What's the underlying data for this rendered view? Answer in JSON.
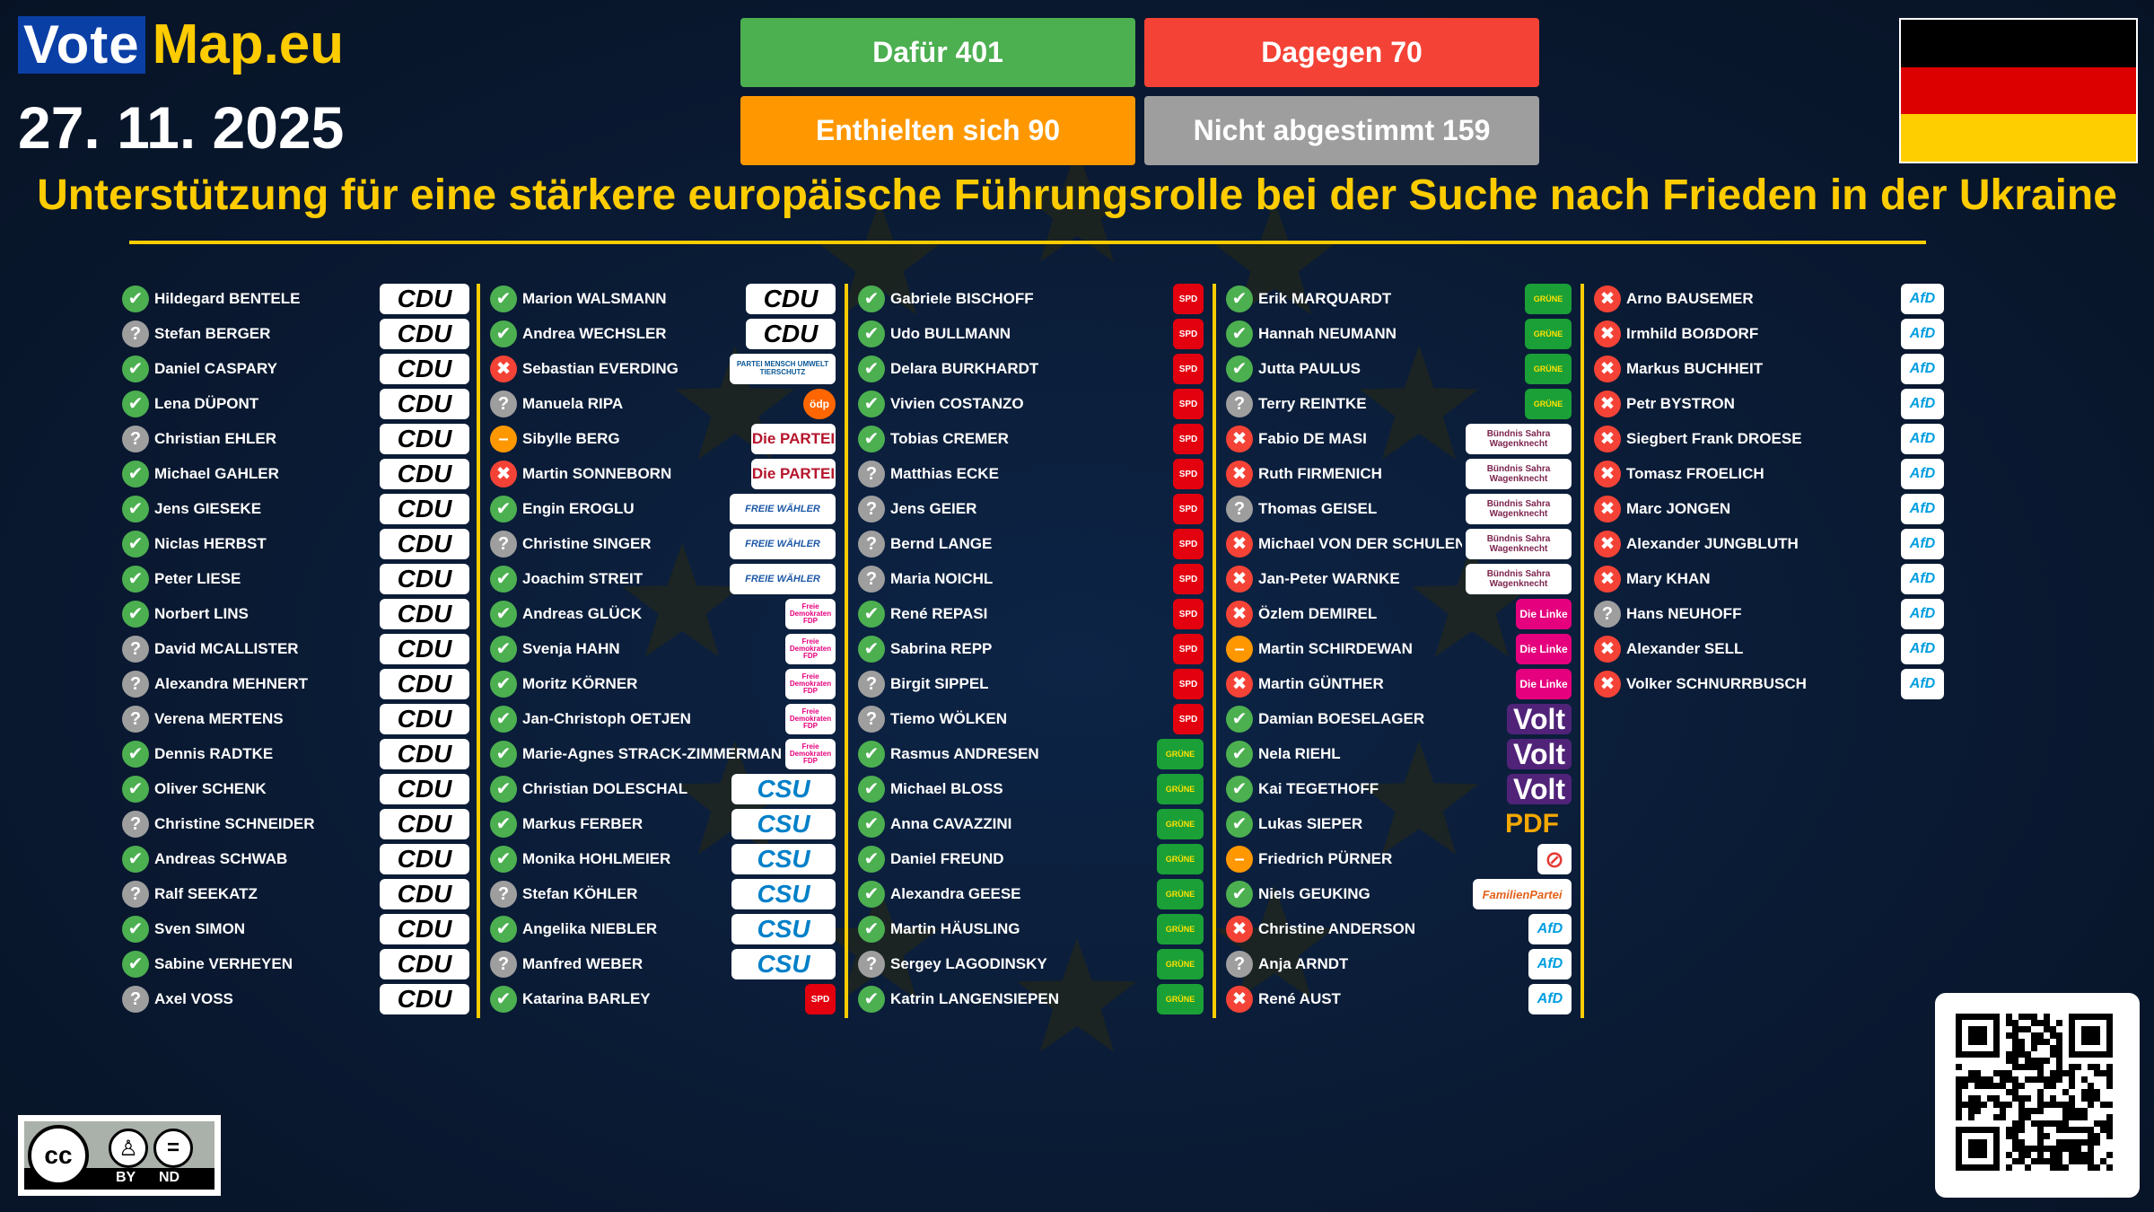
{
  "brand": {
    "vote": "Vote",
    "map": "Map.eu"
  },
  "date": "27. 11. 2025",
  "counts": {
    "for": "Dafür 401",
    "against": "Dagegen 70",
    "abstain": "Enthielten sich 90",
    "novote": "Nicht abgestimmt 159"
  },
  "title": "Unterstützung für eine stärkere europäische Führungsrolle bei der Suche nach Frieden in der Ukraine",
  "license": {
    "by": "BY",
    "nd": "ND"
  },
  "colors": {
    "for": "#4caf50",
    "against": "#f44336",
    "abstain": "#ff9800",
    "novote": "#9e9e9e",
    "accent": "#ffcc00",
    "background": "#0a1a33"
  },
  "flag": [
    "#000000",
    "#dd0000",
    "#ffce00"
  ],
  "columns": [
    [
      {
        "name": "Hildegard BENTELE",
        "vote": "for",
        "party": "cdu"
      },
      {
        "name": "Stefan BERGER",
        "vote": "novote",
        "party": "cdu"
      },
      {
        "name": "Daniel CASPARY",
        "vote": "for",
        "party": "cdu"
      },
      {
        "name": "Lena DÜPONT",
        "vote": "for",
        "party": "cdu"
      },
      {
        "name": "Christian EHLER",
        "vote": "novote",
        "party": "cdu"
      },
      {
        "name": "Michael GAHLER",
        "vote": "for",
        "party": "cdu"
      },
      {
        "name": "Jens GIESEKE",
        "vote": "for",
        "party": "cdu"
      },
      {
        "name": "Niclas HERBST",
        "vote": "for",
        "party": "cdu"
      },
      {
        "name": "Peter LIESE",
        "vote": "for",
        "party": "cdu"
      },
      {
        "name": "Norbert LINS",
        "vote": "for",
        "party": "cdu"
      },
      {
        "name": "David MCALLISTER",
        "vote": "novote",
        "party": "cdu"
      },
      {
        "name": "Alexandra MEHNERT",
        "vote": "novote",
        "party": "cdu"
      },
      {
        "name": "Verena MERTENS",
        "vote": "novote",
        "party": "cdu"
      },
      {
        "name": "Dennis RADTKE",
        "vote": "for",
        "party": "cdu"
      },
      {
        "name": "Oliver SCHENK",
        "vote": "for",
        "party": "cdu"
      },
      {
        "name": "Christine SCHNEIDER",
        "vote": "novote",
        "party": "cdu"
      },
      {
        "name": "Andreas SCHWAB",
        "vote": "for",
        "party": "cdu"
      },
      {
        "name": "Ralf SEEKATZ",
        "vote": "novote",
        "party": "cdu"
      },
      {
        "name": "Sven SIMON",
        "vote": "for",
        "party": "cdu"
      },
      {
        "name": "Sabine VERHEYEN",
        "vote": "for",
        "party": "cdu"
      },
      {
        "name": "Axel VOSS",
        "vote": "novote",
        "party": "cdu"
      }
    ],
    [
      {
        "name": "Marion WALSMANN",
        "vote": "for",
        "party": "cdu"
      },
      {
        "name": "Andrea WECHSLER",
        "vote": "for",
        "party": "cdu"
      },
      {
        "name": "Sebastian EVERDING",
        "vote": "against",
        "party": "tierschutz"
      },
      {
        "name": "Manuela RIPA",
        "vote": "novote",
        "party": "oedp"
      },
      {
        "name": "Sibylle BERG",
        "vote": "abstain",
        "party": "partei"
      },
      {
        "name": "Martin SONNEBORN",
        "vote": "against",
        "party": "partei"
      },
      {
        "name": "Engin EROGLU",
        "vote": "for",
        "party": "fw"
      },
      {
        "name": "Christine SINGER",
        "vote": "novote",
        "party": "fw"
      },
      {
        "name": "Joachim STREIT",
        "vote": "for",
        "party": "fw"
      },
      {
        "name": "Andreas GLÜCK",
        "vote": "for",
        "party": "fdp"
      },
      {
        "name": "Svenja HAHN",
        "vote": "for",
        "party": "fdp"
      },
      {
        "name": "Moritz KÖRNER",
        "vote": "for",
        "party": "fdp"
      },
      {
        "name": "Jan-Christoph OETJEN",
        "vote": "for",
        "party": "fdp"
      },
      {
        "name": "Marie-Agnes STRACK-ZIMMERMANN",
        "vote": "for",
        "party": "fdp"
      },
      {
        "name": "Christian DOLESCHAL",
        "vote": "for",
        "party": "csu"
      },
      {
        "name": "Markus FERBER",
        "vote": "for",
        "party": "csu"
      },
      {
        "name": "Monika HOHLMEIER",
        "vote": "for",
        "party": "csu"
      },
      {
        "name": "Stefan KÖHLER",
        "vote": "novote",
        "party": "csu"
      },
      {
        "name": "Angelika NIEBLER",
        "vote": "for",
        "party": "csu"
      },
      {
        "name": "Manfred WEBER",
        "vote": "novote",
        "party": "csu"
      },
      {
        "name": "Katarina BARLEY",
        "vote": "for",
        "party": "spd"
      }
    ],
    [
      {
        "name": "Gabriele BISCHOFF",
        "vote": "for",
        "party": "spd"
      },
      {
        "name": "Udo BULLMANN",
        "vote": "for",
        "party": "spd"
      },
      {
        "name": "Delara BURKHARDT",
        "vote": "for",
        "party": "spd"
      },
      {
        "name": "Vivien COSTANZO",
        "vote": "for",
        "party": "spd"
      },
      {
        "name": "Tobias CREMER",
        "vote": "for",
        "party": "spd"
      },
      {
        "name": "Matthias ECKE",
        "vote": "novote",
        "party": "spd"
      },
      {
        "name": "Jens GEIER",
        "vote": "novote",
        "party": "spd"
      },
      {
        "name": "Bernd LANGE",
        "vote": "novote",
        "party": "spd"
      },
      {
        "name": "Maria NOICHL",
        "vote": "novote",
        "party": "spd"
      },
      {
        "name": "René REPASI",
        "vote": "for",
        "party": "spd"
      },
      {
        "name": "Sabrina REPP",
        "vote": "for",
        "party": "spd"
      },
      {
        "name": "Birgit SIPPEL",
        "vote": "novote",
        "party": "spd"
      },
      {
        "name": "Tiemo WÖLKEN",
        "vote": "novote",
        "party": "spd"
      },
      {
        "name": "Rasmus ANDRESEN",
        "vote": "for",
        "party": "gruene"
      },
      {
        "name": "Michael BLOSS",
        "vote": "for",
        "party": "gruene"
      },
      {
        "name": "Anna CAVAZZINI",
        "vote": "for",
        "party": "gruene"
      },
      {
        "name": "Daniel FREUND",
        "vote": "for",
        "party": "gruene"
      },
      {
        "name": "Alexandra GEESE",
        "vote": "for",
        "party": "gruene"
      },
      {
        "name": "Martin HÄUSLING",
        "vote": "for",
        "party": "gruene"
      },
      {
        "name": "Sergey LAGODINSKY",
        "vote": "novote",
        "party": "gruene"
      },
      {
        "name": "Katrin LANGENSIEPEN",
        "vote": "for",
        "party": "gruene"
      }
    ],
    [
      {
        "name": "Erik MARQUARDT",
        "vote": "for",
        "party": "gruene"
      },
      {
        "name": "Hannah NEUMANN",
        "vote": "for",
        "party": "gruene"
      },
      {
        "name": "Jutta PAULUS",
        "vote": "for",
        "party": "gruene"
      },
      {
        "name": "Terry REINTKE",
        "vote": "novote",
        "party": "gruene"
      },
      {
        "name": "Fabio DE MASI",
        "vote": "against",
        "party": "bsw"
      },
      {
        "name": "Ruth FIRMENICH",
        "vote": "against",
        "party": "bsw"
      },
      {
        "name": "Thomas GEISEL",
        "vote": "novote",
        "party": "bsw"
      },
      {
        "name": "Michael VON DER SCHULENBURG",
        "vote": "against",
        "party": "bsw"
      },
      {
        "name": "Jan-Peter WARNKE",
        "vote": "against",
        "party": "bsw"
      },
      {
        "name": "Özlem DEMIREL",
        "vote": "against",
        "party": "linke"
      },
      {
        "name": "Martin SCHIRDEWAN",
        "vote": "abstain",
        "party": "linke"
      },
      {
        "name": "Martin GÜNTHER",
        "vote": "against",
        "party": "linke"
      },
      {
        "name": "Damian BOESELAGER",
        "vote": "for",
        "party": "volt"
      },
      {
        "name": "Nela RIEHL",
        "vote": "for",
        "party": "volt"
      },
      {
        "name": "Kai TEGETHOFF",
        "vote": "for",
        "party": "volt"
      },
      {
        "name": "Lukas SIEPER",
        "vote": "for",
        "party": "pdf"
      },
      {
        "name": "Friedrich PÜRNER",
        "vote": "abstain",
        "party": "none"
      },
      {
        "name": "Niels GEUKING",
        "vote": "for",
        "party": "familie"
      },
      {
        "name": "Christine ANDERSON",
        "vote": "against",
        "party": "afd"
      },
      {
        "name": "Anja ARNDT",
        "vote": "novote",
        "party": "afd"
      },
      {
        "name": "René AUST",
        "vote": "against",
        "party": "afd"
      }
    ],
    [
      {
        "name": "Arno BAUSEMER",
        "vote": "against",
        "party": "afd"
      },
      {
        "name": "Irmhild BOẞDORF",
        "vote": "against",
        "party": "afd"
      },
      {
        "name": "Markus BUCHHEIT",
        "vote": "against",
        "party": "afd"
      },
      {
        "name": "Petr BYSTRON",
        "vote": "against",
        "party": "afd"
      },
      {
        "name": "Siegbert Frank DROESE",
        "vote": "against",
        "party": "afd"
      },
      {
        "name": "Tomasz FROELICH",
        "vote": "against",
        "party": "afd"
      },
      {
        "name": "Marc JONGEN",
        "vote": "against",
        "party": "afd"
      },
      {
        "name": "Alexander JUNGBLUTH",
        "vote": "against",
        "party": "afd"
      },
      {
        "name": "Mary KHAN",
        "vote": "against",
        "party": "afd"
      },
      {
        "name": "Hans NEUHOFF",
        "vote": "novote",
        "party": "afd"
      },
      {
        "name": "Alexander SELL",
        "vote": "against",
        "party": "afd"
      },
      {
        "name": "Volker SCHNURRBUSCH",
        "vote": "against",
        "party": "afd"
      }
    ]
  ],
  "party_logos": {
    "cdu": {
      "text": "CDU",
      "color": "#000000"
    },
    "csu": {
      "text": "CSU",
      "color": "#0080c9"
    },
    "spd": {
      "text": "SPD",
      "color": "#e3000f"
    },
    "gruene": {
      "text": "GRÜNE",
      "color": "#1aa037"
    },
    "fdp": {
      "text": "Freie Demokraten FDP",
      "color": "#e5007d"
    },
    "afd": {
      "text": "AfD",
      "color": "#009ee0"
    },
    "bsw": {
      "text": "Bündnis Sahra Wagenknecht",
      "color": "#7d254f"
    },
    "linke": {
      "text": "Die Linke",
      "color": "#be3075"
    },
    "volt": {
      "text": "Volt",
      "color": "#502379"
    },
    "fw": {
      "text": "FREIE WÄHLER",
      "color": "#1e5aa8"
    },
    "partei": {
      "text": "Die PARTEI",
      "color": "#b5152b"
    },
    "oedp": {
      "text": "ödp",
      "color": "#ff6600"
    },
    "tierschutz": {
      "text": "PARTEI MENSCH UMWELT TIERSCHUTZ",
      "color": "#0a5796"
    },
    "pdf": {
      "text": "PDF",
      "color": "#f4a700"
    },
    "familie": {
      "text": "FamilienPartei",
      "color": "#e2621b"
    },
    "none": {
      "text": "",
      "color": "#e53935"
    }
  }
}
